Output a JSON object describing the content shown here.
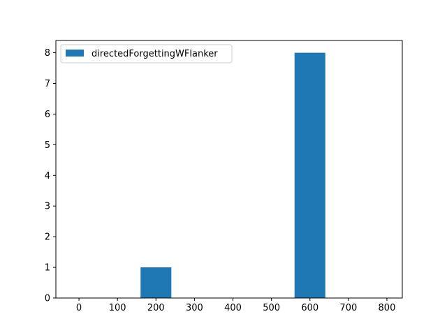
{
  "chart_data": {
    "type": "bar",
    "series": [
      {
        "name": "directedForgettingWFlanker",
        "color": "#1f77b4",
        "bars": [
          {
            "x_start": 160,
            "x_end": 240,
            "value": 1
          },
          {
            "x_start": 560,
            "x_end": 640,
            "value": 8
          }
        ]
      }
    ],
    "xlim": [
      -60,
      840
    ],
    "ylim": [
      0,
      8.4
    ],
    "xticks": [
      0,
      100,
      200,
      300,
      400,
      500,
      600,
      700,
      800
    ],
    "xtick_labels": [
      "0",
      "100",
      "200",
      "300",
      "400",
      "500",
      "600",
      "700",
      "800"
    ],
    "yticks": [
      0,
      1,
      2,
      3,
      4,
      5,
      6,
      7,
      8
    ],
    "ytick_labels": [
      "0",
      "1",
      "2",
      "3",
      "4",
      "5",
      "6",
      "7",
      "8"
    ],
    "grid": false,
    "legend_position": "top-left"
  }
}
